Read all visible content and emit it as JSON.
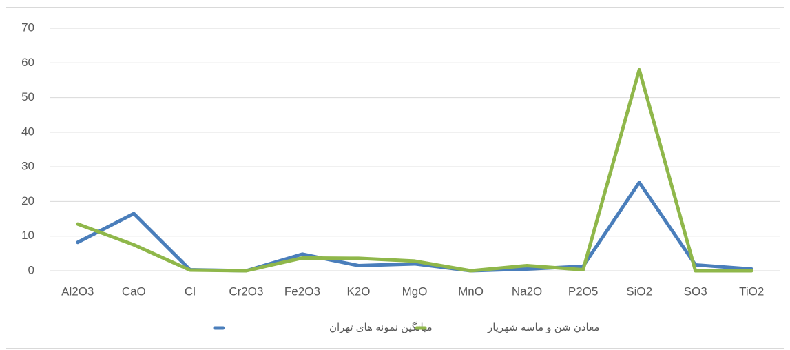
{
  "chart_data": {
    "type": "line",
    "categories": [
      "Al2O3",
      "CaO",
      "Cl",
      "Cr2O3",
      "Fe2O3",
      "K2O",
      "MgO",
      "MnO",
      "Na2O",
      "P2O5",
      "SiO2",
      "SO3",
      "TiO2"
    ],
    "series": [
      {
        "name": "میانگین نمونه های تهران",
        "color": "#4a7ebb",
        "values": [
          8.2,
          16.5,
          0.3,
          0,
          4.8,
          1.5,
          2,
          0,
          0.5,
          1.3,
          25.5,
          1.7,
          0.5
        ]
      },
      {
        "name": "معادن شن و ماسه شهریار",
        "color": "#8fb74a",
        "values": [
          13.5,
          7.5,
          0.2,
          0,
          3.7,
          3.6,
          2.8,
          0,
          1.5,
          0.3,
          58,
          0,
          0
        ]
      }
    ],
    "ylim": [
      0,
      70
    ],
    "yticks": [
      0,
      10,
      20,
      30,
      40,
      50,
      60,
      70
    ],
    "grid": true,
    "legend": "bottom"
  }
}
